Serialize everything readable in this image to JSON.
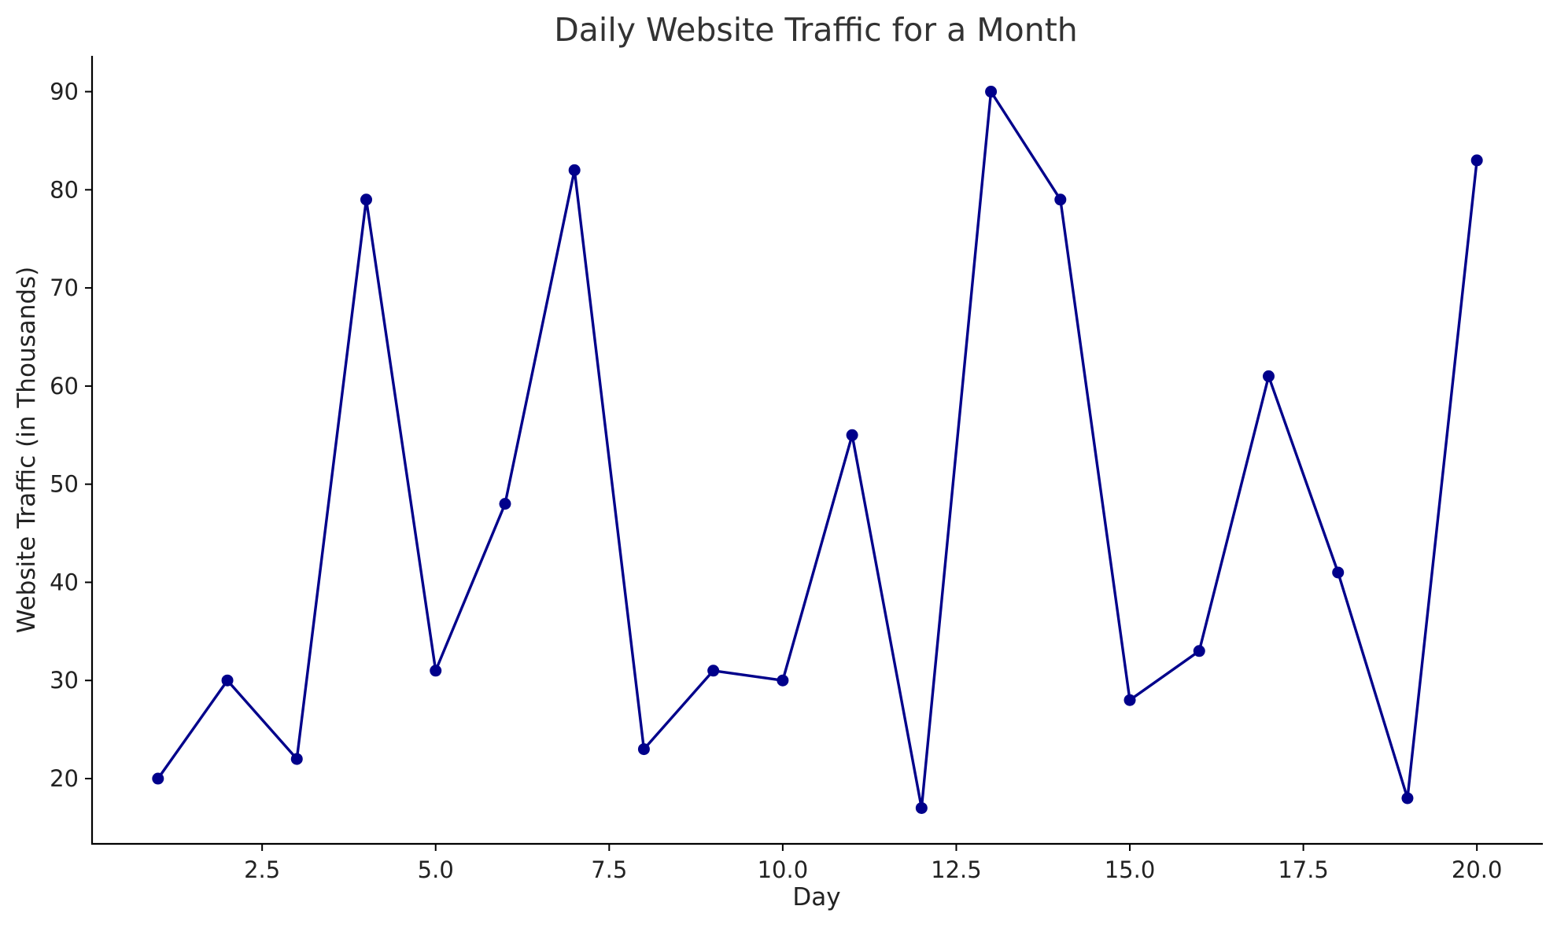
{
  "chart_data": {
    "type": "line",
    "title": "Daily Website Traffic for a Month",
    "xlabel": "Day",
    "ylabel": "Website Traffic (in Thousands)",
    "x": [
      1,
      2,
      3,
      4,
      5,
      6,
      7,
      8,
      9,
      10,
      11,
      12,
      13,
      14,
      15,
      16,
      17,
      18,
      19,
      20
    ],
    "series": [
      {
        "values": [
          20,
          30,
          22,
          79,
          31,
          48,
          82,
          23,
          31,
          30,
          55,
          17,
          90,
          79,
          28,
          33,
          61,
          41,
          18,
          83
        ],
        "color": "#00008b",
        "marker": "circle"
      }
    ],
    "xlim": [
      0.05,
      20.95
    ],
    "ylim": [
      13.35,
      93.65
    ],
    "xticks": [
      2.5,
      5.0,
      7.5,
      10.0,
      12.5,
      15.0,
      17.5,
      20.0
    ],
    "xtick_labels": [
      "2.5",
      "5.0",
      "7.5",
      "10.0",
      "12.5",
      "15.0",
      "17.5",
      "20.0"
    ],
    "yticks": [
      20,
      30,
      40,
      50,
      60,
      70,
      80,
      90
    ],
    "ytick_labels": [
      "20",
      "30",
      "40",
      "50",
      "60",
      "70",
      "80",
      "90"
    ],
    "grid": false,
    "legend": "none"
  }
}
